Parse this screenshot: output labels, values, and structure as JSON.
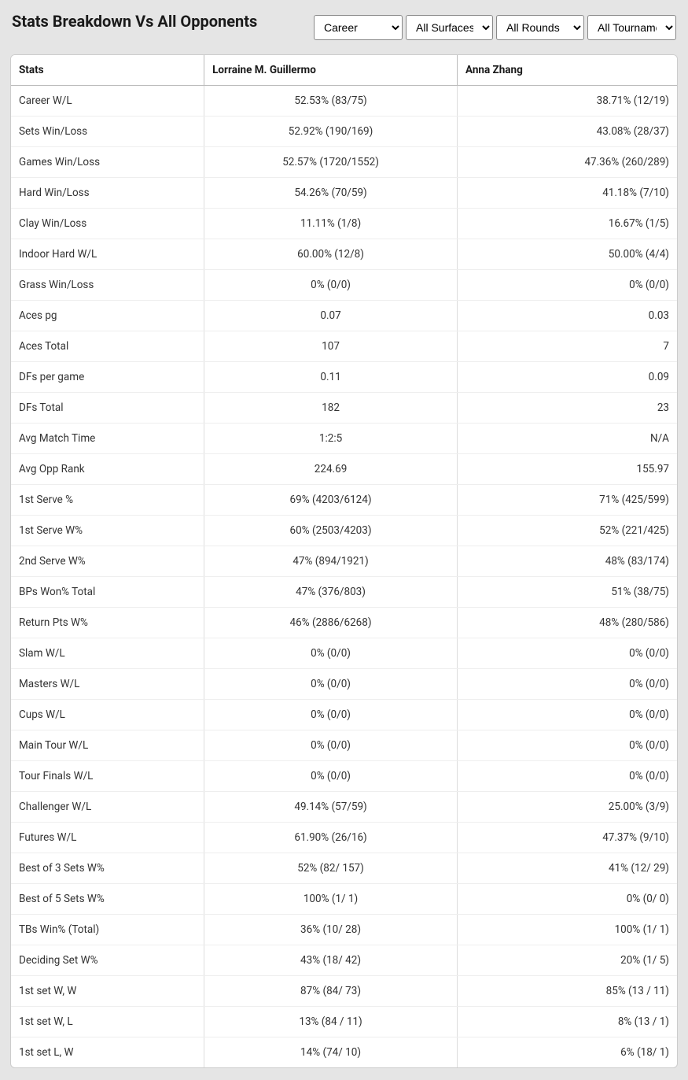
{
  "header": {
    "title": "Stats Breakdown Vs All Opponents"
  },
  "filters": {
    "period": {
      "selected": "Career",
      "options": [
        "Career"
      ]
    },
    "surface": {
      "selected": "All Surfaces",
      "options": [
        "All Surfaces"
      ]
    },
    "rounds": {
      "selected": "All Rounds",
      "options": [
        "All Rounds"
      ]
    },
    "tournaments": {
      "selected": "All Tournaments",
      "options": [
        "All Tournaments"
      ]
    }
  },
  "table": {
    "columns": [
      "Stats",
      "Lorraine M. Guillermo",
      "Anna Zhang"
    ],
    "rows": [
      {
        "stat": "Career W/L",
        "p1": "52.53% (83/75)",
        "p2": "38.71% (12/19)"
      },
      {
        "stat": "Sets Win/Loss",
        "p1": "52.92% (190/169)",
        "p2": "43.08% (28/37)"
      },
      {
        "stat": "Games Win/Loss",
        "p1": "52.57% (1720/1552)",
        "p2": "47.36% (260/289)"
      },
      {
        "stat": "Hard Win/Loss",
        "p1": "54.26% (70/59)",
        "p2": "41.18% (7/10)"
      },
      {
        "stat": "Clay Win/Loss",
        "p1": "11.11% (1/8)",
        "p2": "16.67% (1/5)"
      },
      {
        "stat": "Indoor Hard W/L",
        "p1": "60.00% (12/8)",
        "p2": "50.00% (4/4)"
      },
      {
        "stat": "Grass Win/Loss",
        "p1": "0% (0/0)",
        "p2": "0% (0/0)"
      },
      {
        "stat": "Aces pg",
        "p1": "0.07",
        "p2": "0.03"
      },
      {
        "stat": "Aces Total",
        "p1": "107",
        "p2": "7"
      },
      {
        "stat": "DFs per game",
        "p1": "0.11",
        "p2": "0.09"
      },
      {
        "stat": "DFs Total",
        "p1": "182",
        "p2": "23"
      },
      {
        "stat": "Avg Match Time",
        "p1": "1:2:5",
        "p2": "N/A"
      },
      {
        "stat": "Avg Opp Rank",
        "p1": "224.69",
        "p2": "155.97"
      },
      {
        "stat": "1st Serve %",
        "p1": "69% (4203/6124)",
        "p2": "71% (425/599)"
      },
      {
        "stat": "1st Serve W%",
        "p1": "60% (2503/4203)",
        "p2": "52% (221/425)"
      },
      {
        "stat": "2nd Serve W%",
        "p1": "47% (894/1921)",
        "p2": "48% (83/174)"
      },
      {
        "stat": "BPs Won% Total",
        "p1": "47% (376/803)",
        "p2": "51% (38/75)"
      },
      {
        "stat": "Return Pts W%",
        "p1": "46% (2886/6268)",
        "p2": "48% (280/586)"
      },
      {
        "stat": "Slam W/L",
        "p1": "0% (0/0)",
        "p2": "0% (0/0)"
      },
      {
        "stat": "Masters W/L",
        "p1": "0% (0/0)",
        "p2": "0% (0/0)"
      },
      {
        "stat": "Cups W/L",
        "p1": "0% (0/0)",
        "p2": "0% (0/0)"
      },
      {
        "stat": "Main Tour W/L",
        "p1": "0% (0/0)",
        "p2": "0% (0/0)"
      },
      {
        "stat": "Tour Finals W/L",
        "p1": "0% (0/0)",
        "p2": "0% (0/0)"
      },
      {
        "stat": "Challenger W/L",
        "p1": "49.14% (57/59)",
        "p2": "25.00% (3/9)"
      },
      {
        "stat": "Futures W/L",
        "p1": "61.90% (26/16)",
        "p2": "47.37% (9/10)"
      },
      {
        "stat": "Best of 3 Sets W%",
        "p1": "52% (82/ 157)",
        "p2": "41% (12/ 29)"
      },
      {
        "stat": "Best of 5 Sets W%",
        "p1": "100% (1/ 1)",
        "p2": "0% (0/ 0)"
      },
      {
        "stat": "TBs Win% (Total)",
        "p1": "36% (10/ 28)",
        "p2": "100% (1/ 1)"
      },
      {
        "stat": "Deciding Set W%",
        "p1": "43% (18/ 42)",
        "p2": "20% (1/ 5)"
      },
      {
        "stat": "1st set W, W",
        "p1": "87% (84/ 73)",
        "p2": "85% (13 / 11)"
      },
      {
        "stat": "1st set W, L",
        "p1": "13% (84 / 11)",
        "p2": "8% (13 / 1)"
      },
      {
        "stat": "1st set L, W",
        "p1": "14% (74/ 10)",
        "p2": "6% (18/ 1)"
      }
    ]
  }
}
